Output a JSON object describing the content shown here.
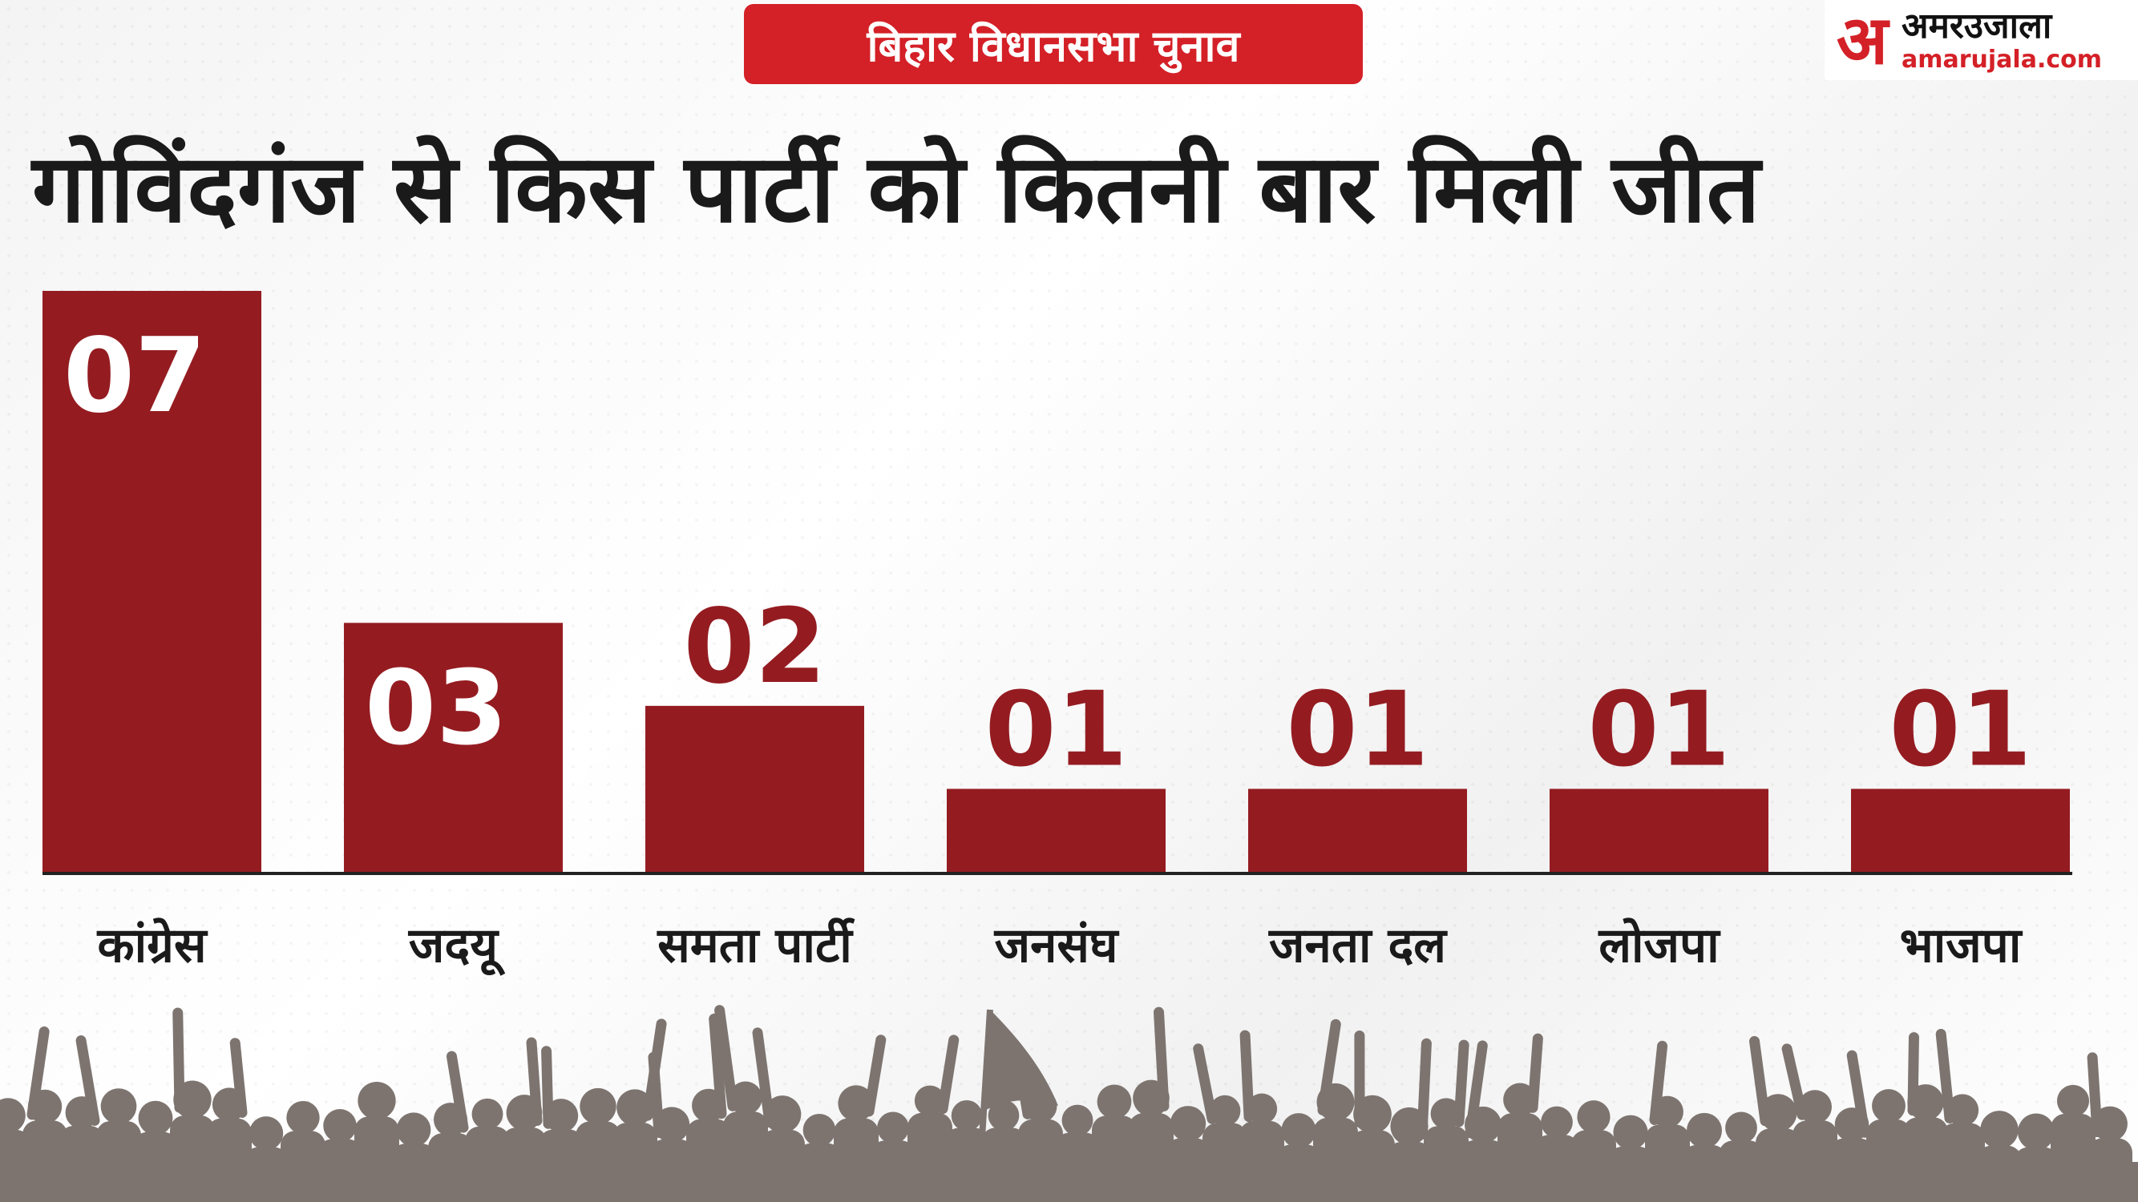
{
  "header": {
    "tag_label": "बिहार विधानसभा चुनाव",
    "title": "गोविंदगंज से किस पार्टी को कितनी बार मिली जीत"
  },
  "logo": {
    "mark": "अ",
    "name": "अमरउजाला",
    "url": "amarujala.com"
  },
  "colors": {
    "bar": "#941c21",
    "accent": "#d42027",
    "value_text_on_bar": "#ffffff",
    "crowd": "#7d7470"
  },
  "chart_data": {
    "type": "bar",
    "title": "गोविंदगंज से किस पार्टी को कितनी बार मिली जीत",
    "categories": [
      "कांग्रेस",
      "जदयू",
      "समता पार्टी",
      "जनसंघ",
      "जनता दल",
      "लोजपा",
      "भाजपा"
    ],
    "values": [
      7,
      3,
      2,
      1,
      1,
      1,
      1
    ],
    "value_labels": [
      "07",
      "03",
      "02",
      "01",
      "01",
      "01",
      "01"
    ],
    "xlabel": "",
    "ylabel": "",
    "ylim": [
      0,
      7
    ],
    "grid": false,
    "legend": "none"
  }
}
